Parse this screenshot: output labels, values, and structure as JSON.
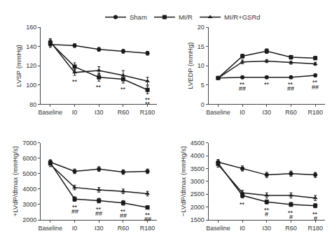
{
  "chart_data": [
    {
      "type": "line",
      "ylabel": "LVSP (mmHg)",
      "categories": [
        "Baseline",
        "I0",
        "I30",
        "R60",
        "R180"
      ],
      "ylim": [
        80,
        160
      ],
      "yticks": [
        80,
        100,
        120,
        140,
        160
      ],
      "grid": false,
      "legend": "top",
      "series": [
        {
          "name": "Sham",
          "color": "#1a1a1a",
          "marker": "circle",
          "values": [
            142,
            141,
            137,
            135,
            133
          ],
          "errors": [
            3,
            2,
            2,
            2,
            2
          ]
        },
        {
          "name": "MI/R",
          "color": "#1a1a1a",
          "marker": "square",
          "values": [
            144,
            119,
            108,
            106,
            95
          ],
          "errors": [
            3,
            4,
            4,
            4,
            4
          ]
        },
        {
          "name": "MI/R+GSRd",
          "color": "#1a1a1a",
          "marker": "triangle-up",
          "values": [
            145,
            113,
            115,
            110,
            104
          ],
          "errors": [
            3,
            3,
            4,
            5,
            4
          ]
        }
      ],
      "annotations": [
        {
          "category": "I0",
          "text": "**"
        },
        {
          "category": "I30",
          "text": "**"
        },
        {
          "category": "R60",
          "text": "**"
        },
        {
          "category": "R180",
          "text": "**"
        },
        {
          "category": "R180",
          "text": "**"
        }
      ]
    },
    {
      "type": "line",
      "ylabel": "LVEDP (mmHg)",
      "categories": [
        "Baseline",
        "I0",
        "I30",
        "R60",
        "R180"
      ],
      "ylim": [
        0,
        20
      ],
      "yticks": [
        0,
        5,
        10,
        15,
        20
      ],
      "grid": false,
      "series": [
        {
          "name": "Sham",
          "color": "#1a1a1a",
          "marker": "circle",
          "values": [
            6.8,
            7.0,
            7.0,
            7.0,
            7.5
          ],
          "errors": [
            0.2,
            0.2,
            0.2,
            0.2,
            0.3
          ]
        },
        {
          "name": "MI/R",
          "color": "#1a1a1a",
          "marker": "square",
          "values": [
            6.8,
            12.5,
            13.8,
            12.2,
            12.0
          ],
          "errors": [
            0.2,
            0.5,
            0.6,
            0.5,
            0.4
          ]
        },
        {
          "name": "MI/R+GSRd",
          "color": "#1a1a1a",
          "marker": "triangle-up",
          "values": [
            6.8,
            11.0,
            11.2,
            10.8,
            10.5
          ],
          "errors": [
            0.2,
            0.5,
            0.4,
            0.4,
            0.4
          ]
        }
      ],
      "annotations": [
        {
          "category": "I0",
          "text": "**"
        },
        {
          "category": "I0",
          "text": "##"
        },
        {
          "category": "I30",
          "text": "**"
        },
        {
          "category": "R60",
          "text": "**"
        },
        {
          "category": "R60",
          "text": "##"
        },
        {
          "category": "R180",
          "text": "**"
        },
        {
          "category": "R180",
          "text": "##"
        }
      ]
    },
    {
      "type": "line",
      "ylabel": "+LVdP/dtmax (mmHg/s)",
      "categories": [
        "Baseline",
        "I0",
        "I30",
        "R60",
        "R180"
      ],
      "ylim": [
        2000,
        7000
      ],
      "yticks": [
        2000,
        3000,
        4000,
        5000,
        6000,
        7000
      ],
      "grid": false,
      "series": [
        {
          "name": "Sham",
          "color": "#1a1a1a",
          "marker": "circle",
          "values": [
            5750,
            5150,
            5300,
            5100,
            5150
          ],
          "errors": [
            150,
            150,
            150,
            150,
            150
          ]
        },
        {
          "name": "MI/R",
          "color": "#1a1a1a",
          "marker": "square",
          "values": [
            5700,
            3350,
            3250,
            3100,
            2800
          ],
          "errors": [
            150,
            150,
            150,
            150,
            100
          ]
        },
        {
          "name": "MI/R+GSRd",
          "color": "#1a1a1a",
          "marker": "triangle-up",
          "values": [
            5600,
            4100,
            3950,
            3850,
            3700
          ],
          "errors": [
            150,
            150,
            150,
            150,
            150
          ]
        }
      ],
      "annotations": [
        {
          "category": "I0",
          "text": "**"
        },
        {
          "category": "I0",
          "text": "##"
        },
        {
          "category": "I30",
          "text": "**"
        },
        {
          "category": "I30",
          "text": "##"
        },
        {
          "category": "R60",
          "text": "**"
        },
        {
          "category": "R60",
          "text": "##"
        },
        {
          "category": "R180",
          "text": "**"
        },
        {
          "category": "R180",
          "text": "##"
        }
      ]
    },
    {
      "type": "line",
      "ylabel": "−LVdP/dtmax (mmHg/s)",
      "categories": [
        "Baseline",
        "I0",
        "I30",
        "R60",
        "R180"
      ],
      "ylim": [
        1500,
        4500
      ],
      "yticks": [
        1500,
        2000,
        2500,
        3000,
        3500,
        4000,
        4500
      ],
      "grid": false,
      "series": [
        {
          "name": "Sham",
          "color": "#1a1a1a",
          "marker": "circle",
          "values": [
            3750,
            3500,
            3250,
            3300,
            3250
          ],
          "errors": [
            100,
            100,
            100,
            100,
            100
          ]
        },
        {
          "name": "MI/R",
          "color": "#1a1a1a",
          "marker": "square",
          "values": [
            3700,
            2450,
            2200,
            2100,
            2050
          ],
          "errors": [
            100,
            100,
            80,
            80,
            80
          ]
        },
        {
          "name": "MI/R+GSRd",
          "color": "#1a1a1a",
          "marker": "triangle-up",
          "values": [
            3650,
            2550,
            2450,
            2450,
            2350
          ],
          "errors": [
            100,
            100,
            100,
            100,
            100
          ]
        }
      ],
      "annotations": [
        {
          "category": "I0",
          "text": "**"
        },
        {
          "category": "I30",
          "text": "**"
        },
        {
          "category": "I30",
          "text": "#"
        },
        {
          "category": "R60",
          "text": "**"
        },
        {
          "category": "R60",
          "text": "#"
        },
        {
          "category": "R180",
          "text": "**"
        },
        {
          "category": "R180",
          "text": "#"
        }
      ]
    }
  ]
}
